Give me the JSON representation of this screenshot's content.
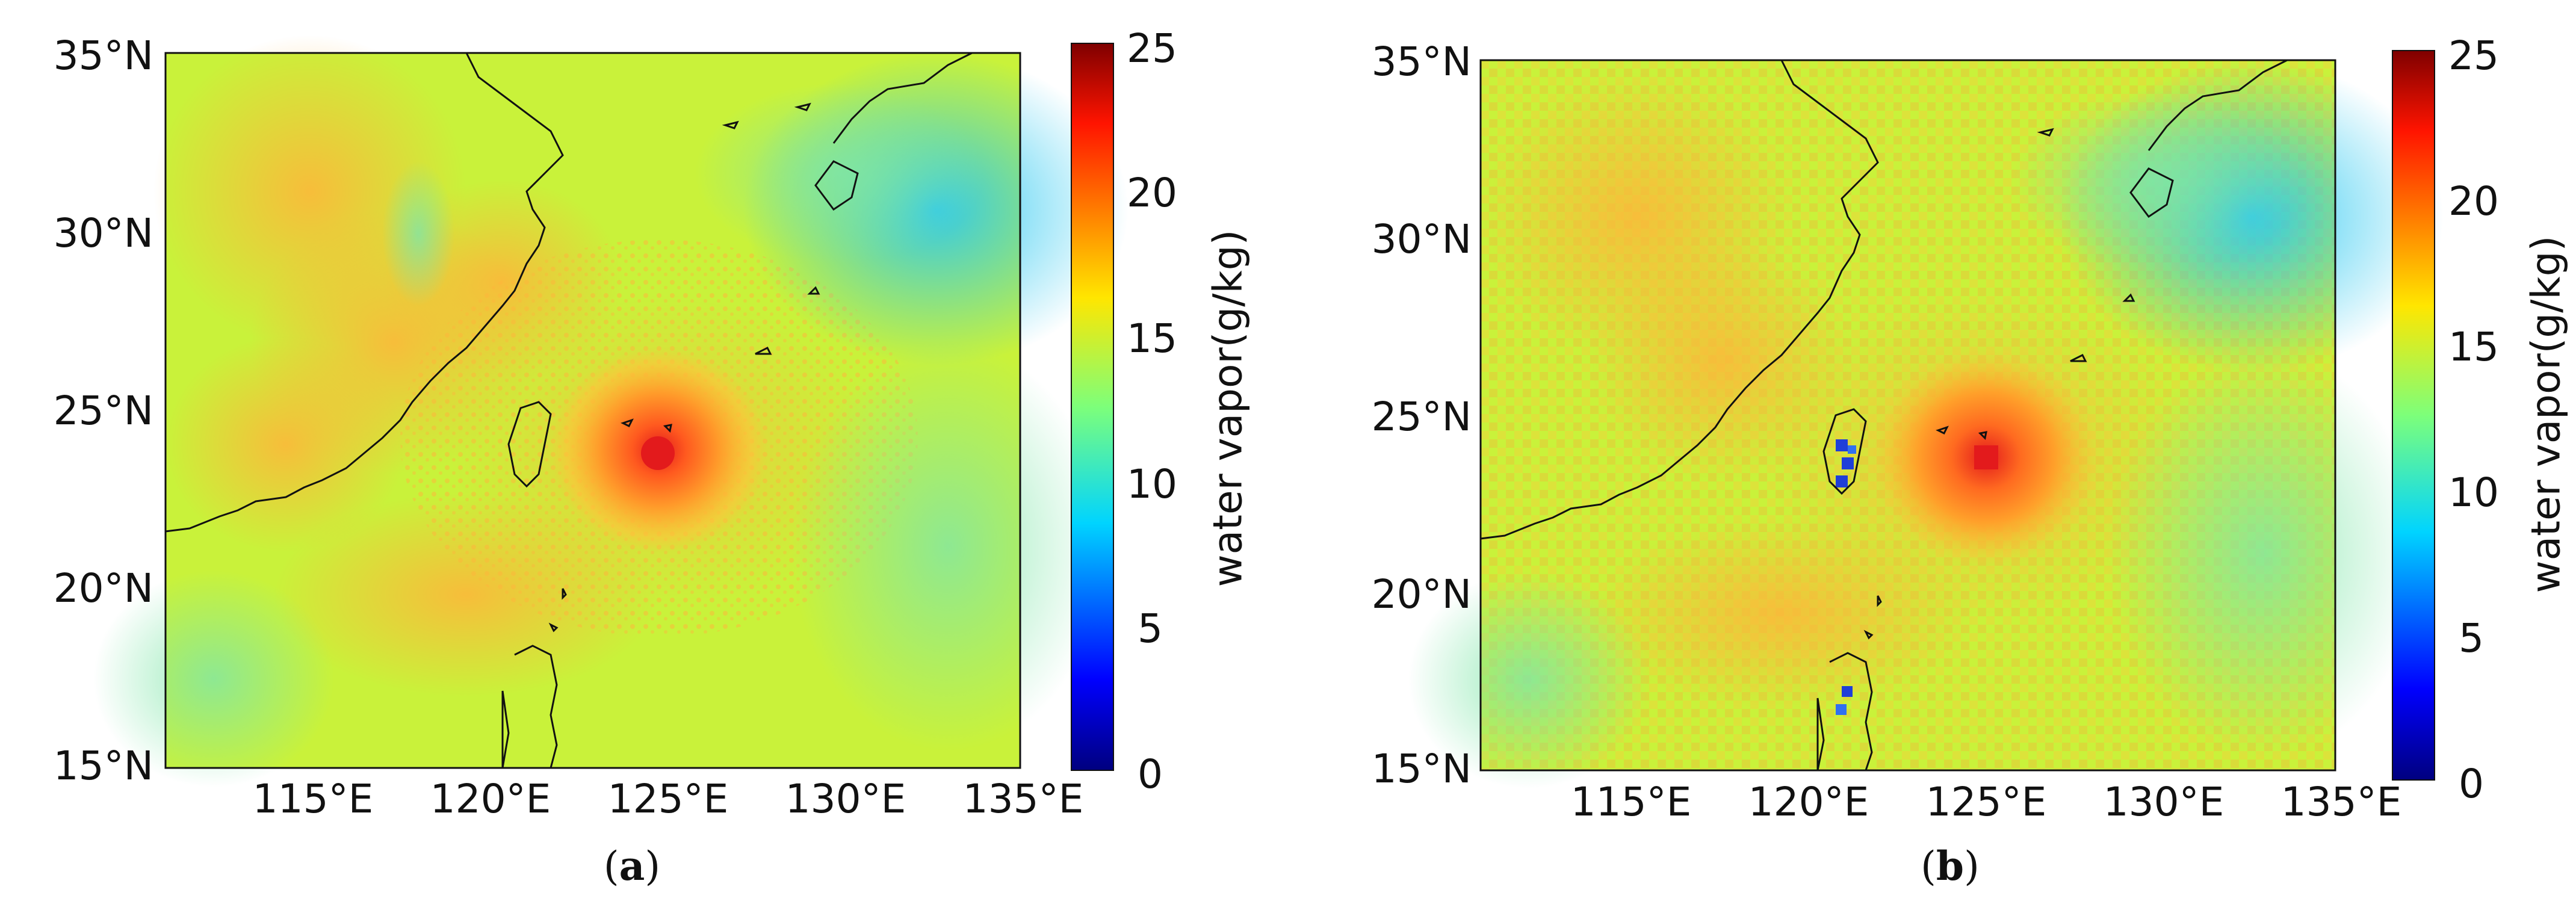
{
  "panels": [
    {
      "id": "a",
      "caption_letter": "a",
      "lat_ticks": [
        "35°N",
        "30°N",
        "25°N",
        "20°N",
        "15°N"
      ],
      "lon_ticks": [
        "115°E",
        "120°E",
        "125°E",
        "130°E",
        "135°E"
      ],
      "colorbar_ticks": [
        "25",
        "20",
        "15",
        "10",
        "5",
        "0"
      ],
      "colorbar_label": "water vapor(g/kg)"
    },
    {
      "id": "b",
      "caption_letter": "b",
      "lat_ticks": [
        "35°N",
        "30°N",
        "25°N",
        "20°N",
        "15°N"
      ],
      "lon_ticks": [
        "115°E",
        "120°E",
        "125°E",
        "130°E",
        "135°E"
      ],
      "colorbar_ticks": [
        "25",
        "20",
        "15",
        "10",
        "5",
        "0"
      ],
      "colorbar_label": "water vapor(g/kg)"
    }
  ],
  "colormap": "jet",
  "colorbar_range": [
    0,
    25
  ],
  "typhoon_center_approx": {
    "lon": 124.7,
    "lat": 23.7
  },
  "colors": {
    "background_field": "#b9f23a",
    "land_outline": "#111111"
  }
}
